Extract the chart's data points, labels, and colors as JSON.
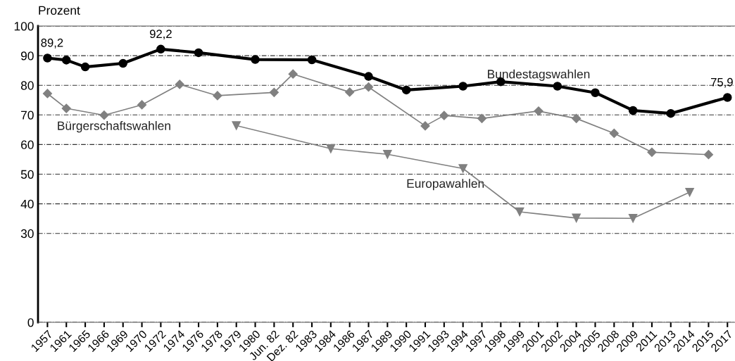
{
  "chart_data": {
    "type": "line",
    "ylabel": "Prozent",
    "categories": [
      "1957",
      "1961",
      "1965",
      "1966",
      "1969",
      "1970",
      "1972",
      "1974",
      "1976",
      "1978",
      "1979",
      "1980",
      "Jun. 82",
      "Dez. 82",
      "1983",
      "1984",
      "1986",
      "1987",
      "1989",
      "1990",
      "1991",
      "1993",
      "1994",
      "1997",
      "1998",
      "1999",
      "2001",
      "2002",
      "2004",
      "2005",
      "2008",
      "2009",
      "2011",
      "2013",
      "2014",
      "2015",
      "2017"
    ],
    "series": [
      {
        "name": "Bundestagswahlen",
        "color": "#000000",
        "marker": "circle",
        "values": [
          89.2,
          88.5,
          86.2,
          null,
          87.4,
          null,
          92.2,
          null,
          91.0,
          null,
          null,
          88.7,
          null,
          null,
          88.6,
          null,
          null,
          83.0,
          null,
          78.4,
          null,
          null,
          79.7,
          null,
          81.2,
          null,
          null,
          79.7,
          null,
          77.5,
          null,
          71.5,
          null,
          70.5,
          null,
          null,
          75.9
        ],
        "value_labels": [
          "89,2",
          null,
          null,
          null,
          null,
          null,
          "92,2",
          null,
          null,
          null,
          null,
          null,
          null,
          null,
          null,
          null,
          null,
          null,
          null,
          null,
          null,
          null,
          null,
          null,
          null,
          null,
          null,
          null,
          null,
          null,
          null,
          null,
          null,
          null,
          null,
          null,
          "75,9"
        ]
      },
      {
        "name": "Bürgerschaftswahlen",
        "color": "#808080",
        "marker": "diamond",
        "values": [
          77.2,
          72.2,
          null,
          69.9,
          null,
          73.4,
          null,
          80.3,
          null,
          76.5,
          null,
          null,
          77.6,
          83.8,
          null,
          null,
          77.7,
          79.4,
          null,
          null,
          66.3,
          69.8,
          null,
          68.8,
          null,
          null,
          71.3,
          null,
          68.8,
          null,
          63.8,
          null,
          57.4,
          null,
          null,
          56.6,
          null
        ]
      },
      {
        "name": "Europawahlen",
        "color": "#808080",
        "marker": "triangle",
        "values": [
          null,
          null,
          null,
          null,
          null,
          null,
          null,
          null,
          null,
          null,
          66.4,
          null,
          null,
          null,
          null,
          58.6,
          null,
          null,
          56.7,
          null,
          null,
          null,
          51.9,
          null,
          null,
          37.3,
          null,
          null,
          35.2,
          null,
          null,
          35.1,
          null,
          null,
          43.9,
          null,
          null
        ]
      }
    ],
    "ylim": [
      0,
      100
    ],
    "yticks": [
      0,
      30,
      40,
      50,
      60,
      70,
      80,
      90,
      100
    ],
    "grid": "y",
    "legend": false,
    "line_style": "solid"
  }
}
